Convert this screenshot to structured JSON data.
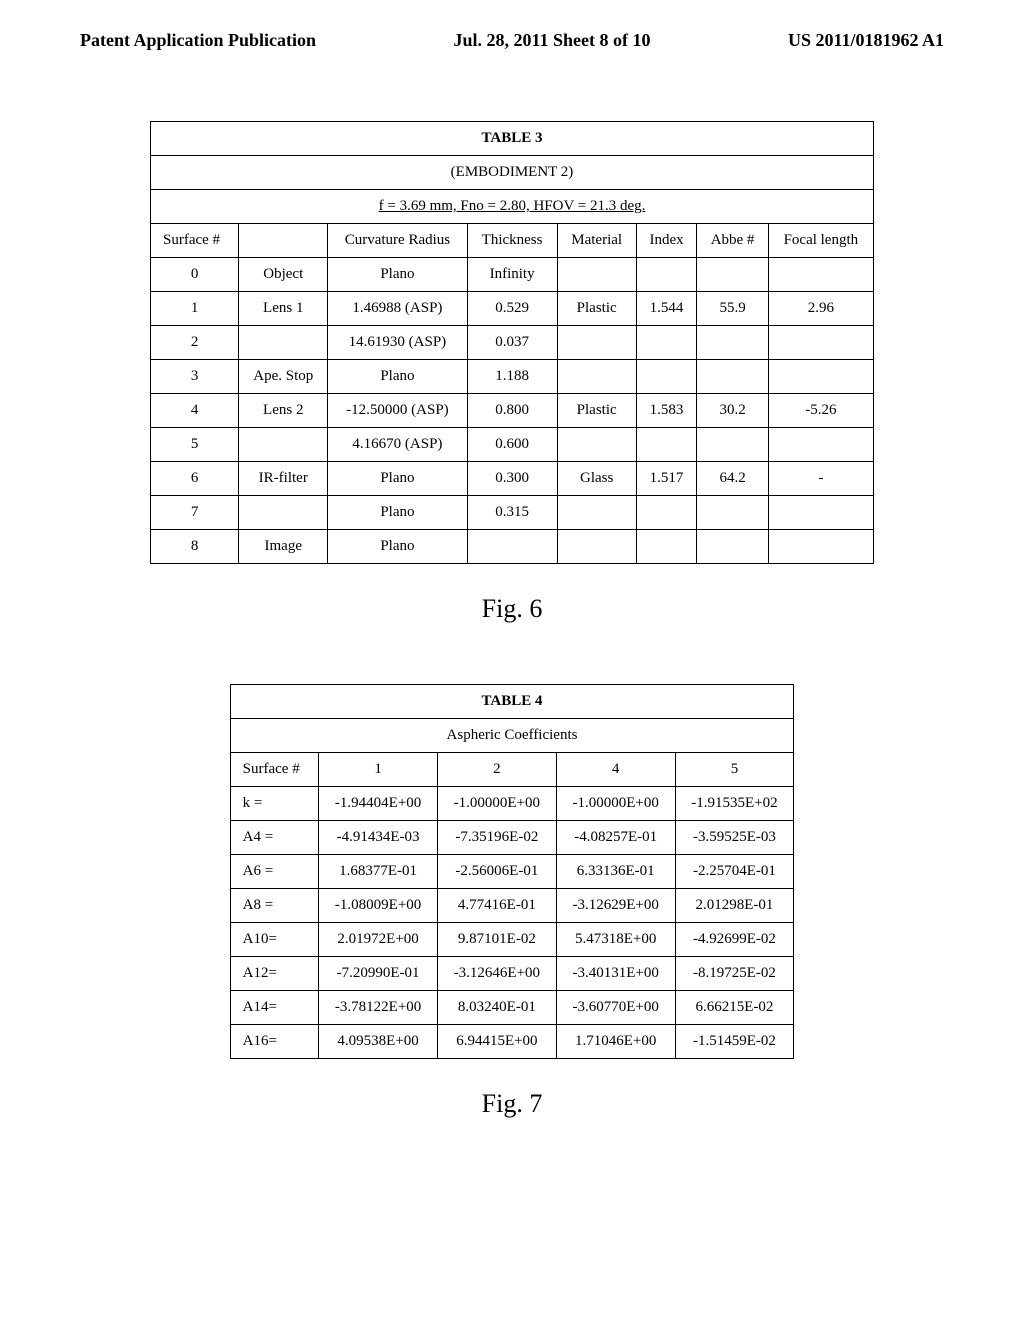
{
  "header": {
    "left": "Patent Application Publication",
    "center": "Jul. 28, 2011  Sheet 8 of 10",
    "right": "US 2011/0181962 A1"
  },
  "table3": {
    "title": "TABLE 3",
    "subtitle": "(EMBODIMENT 2)",
    "params": "f = 3.69 mm, Fno = 2.80, HFOV = 21.3 deg.",
    "headers": [
      "Surface #",
      "",
      "Curvature Radius",
      "Thickness",
      "Material",
      "Index",
      "Abbe #",
      "Focal length"
    ],
    "rows": [
      [
        "0",
        "Object",
        "Plano",
        "Infinity",
        "",
        "",
        "",
        ""
      ],
      [
        "1",
        "Lens 1",
        "1.46988 (ASP)",
        "0.529",
        "Plastic",
        "1.544",
        "55.9",
        "2.96"
      ],
      [
        "2",
        "",
        "14.61930 (ASP)",
        "0.037",
        "",
        "",
        "",
        ""
      ],
      [
        "3",
        "Ape. Stop",
        "Plano",
        "1.188",
        "",
        "",
        "",
        ""
      ],
      [
        "4",
        "Lens 2",
        "-12.50000 (ASP)",
        "0.800",
        "Plastic",
        "1.583",
        "30.2",
        "-5.26"
      ],
      [
        "5",
        "",
        "4.16670 (ASP)",
        "0.600",
        "",
        "",
        "",
        ""
      ],
      [
        "6",
        "IR-filter",
        "Plano",
        "0.300",
        "Glass",
        "1.517",
        "64.2",
        "-"
      ],
      [
        "7",
        "",
        "Plano",
        "0.315",
        "",
        "",
        "",
        ""
      ],
      [
        "8",
        "Image",
        "Plano",
        "",
        "",
        "",
        "",
        ""
      ]
    ]
  },
  "fig6": "Fig. 6",
  "table4": {
    "title": "TABLE 4",
    "subtitle": "Aspheric Coefficients",
    "headers": [
      "Surface #",
      "1",
      "2",
      "4",
      "5"
    ],
    "rows": [
      [
        "k   =",
        "-1.94404E+00",
        "-1.00000E+00",
        "-1.00000E+00",
        "-1.91535E+02"
      ],
      [
        "A4 =",
        "-4.91434E-03",
        "-7.35196E-02",
        "-4.08257E-01",
        "-3.59525E-03"
      ],
      [
        "A6 =",
        "1.68377E-01",
        "-2.56006E-01",
        "6.33136E-01",
        "-2.25704E-01"
      ],
      [
        "A8 =",
        "-1.08009E+00",
        "4.77416E-01",
        "-3.12629E+00",
        "2.01298E-01"
      ],
      [
        "A10=",
        "2.01972E+00",
        "9.87101E-02",
        "5.47318E+00",
        "-4.92699E-02"
      ],
      [
        "A12=",
        "-7.20990E-01",
        "-3.12646E+00",
        "-3.40131E+00",
        "-8.19725E-02"
      ],
      [
        "A14=",
        "-3.78122E+00",
        "8.03240E-01",
        "-3.60770E+00",
        "6.66215E-02"
      ],
      [
        "A16=",
        "4.09538E+00",
        "6.94415E+00",
        "1.71046E+00",
        "-1.51459E-02"
      ]
    ]
  },
  "fig7": "Fig. 7"
}
